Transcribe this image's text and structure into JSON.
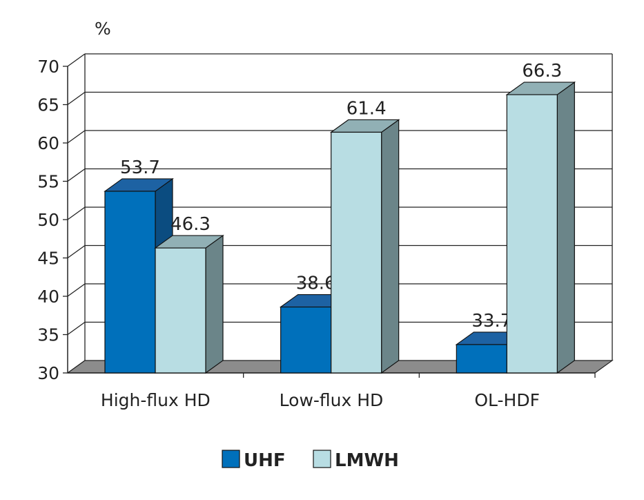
{
  "chart_data": {
    "type": "bar",
    "style": "3d-clustered",
    "title": "",
    "ylabel": "%",
    "xlabel": "",
    "ylim": [
      30,
      70
    ],
    "yticks": [
      30,
      35,
      40,
      45,
      50,
      55,
      60,
      65,
      70
    ],
    "grid": true,
    "categories": [
      "High-flux HD",
      "Low-flux HD",
      "OL-HDF"
    ],
    "series": [
      {
        "name": "UHF",
        "values": [
          53.7,
          38.6,
          33.7
        ],
        "labels": [
          "53.7",
          "38.6",
          "33.7"
        ],
        "color": "#0070bb",
        "top": "#1d62a3",
        "side": "#0b4c80"
      },
      {
        "name": "LMWH",
        "values": [
          46.3,
          61.4,
          66.3
        ],
        "labels": [
          "46.3",
          "61.4",
          "66.3"
        ],
        "color": "#b8dde3",
        "top": "#91b0b5",
        "side": "#6b8589"
      }
    ],
    "legend": "bottom"
  }
}
